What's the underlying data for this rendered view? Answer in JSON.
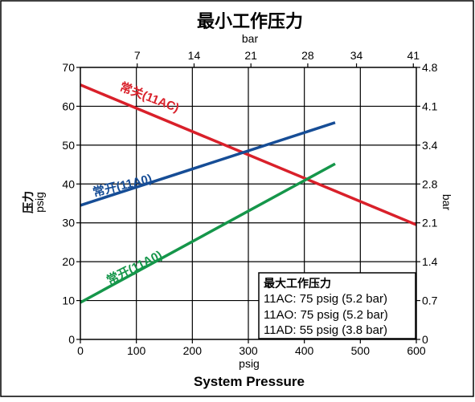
{
  "chart_data": {
    "type": "line",
    "title": "最小工作压力",
    "xlabel": "System Pressure",
    "xlabel_units": "psig",
    "x2label": "bar",
    "ylabel": [
      "压力",
      "psig"
    ],
    "y2label": "bar",
    "xlim": [
      0,
      600
    ],
    "ylim": [
      0,
      70
    ],
    "grid": true,
    "x_ticks": [
      "0",
      "100",
      "200",
      "300",
      "400",
      "500",
      "600"
    ],
    "y_ticks": [
      "0",
      "10",
      "20",
      "30",
      "40",
      "50",
      "60",
      "70"
    ],
    "x2_ticks": [
      "7",
      "14",
      "21",
      "28",
      "34",
      "41"
    ],
    "y2_ticks": [
      "0",
      "0.7",
      "1.4",
      "2.1",
      "2.8",
      "3.4",
      "4.1",
      "4.8"
    ],
    "series": [
      {
        "name": "常关(11AC)",
        "color": "#d9202a",
        "x": [
          0,
          600
        ],
        "y": [
          65.5,
          29.5
        ]
      },
      {
        "name": "常开(11A0)",
        "color": "#164d96",
        "x": [
          0,
          455
        ],
        "y": [
          34.5,
          55.8
        ]
      },
      {
        "name": "常开(11A0)",
        "color": "#15964a",
        "x": [
          0,
          455
        ],
        "y": [
          9.5,
          45.2
        ]
      }
    ],
    "legend": {
      "title": "最大工作压力",
      "items": [
        "11AC: 75 psig (5.2 bar)",
        "11AO: 75 psig (5.2 bar)",
        "11AD: 55 psig (3.8 bar)"
      ],
      "placement": "bottom-right"
    }
  }
}
